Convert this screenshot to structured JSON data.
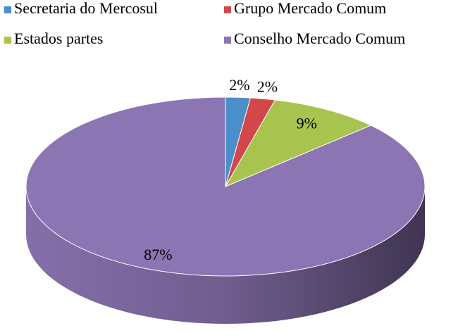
{
  "chart_data": {
    "type": "pie3d",
    "categories": [
      "Secretaria do Mercosul",
      "Grupo Mercado Comum",
      "Estados partes",
      "Conselho Mercado Comum"
    ],
    "values": [
      2,
      2,
      9,
      87
    ],
    "value_labels": [
      "2%",
      "2%",
      "9%",
      "87%"
    ],
    "colors": [
      "#4a8fc9",
      "#d2474a",
      "#a8c44e",
      "#8c75b3"
    ],
    "legend": "top"
  }
}
